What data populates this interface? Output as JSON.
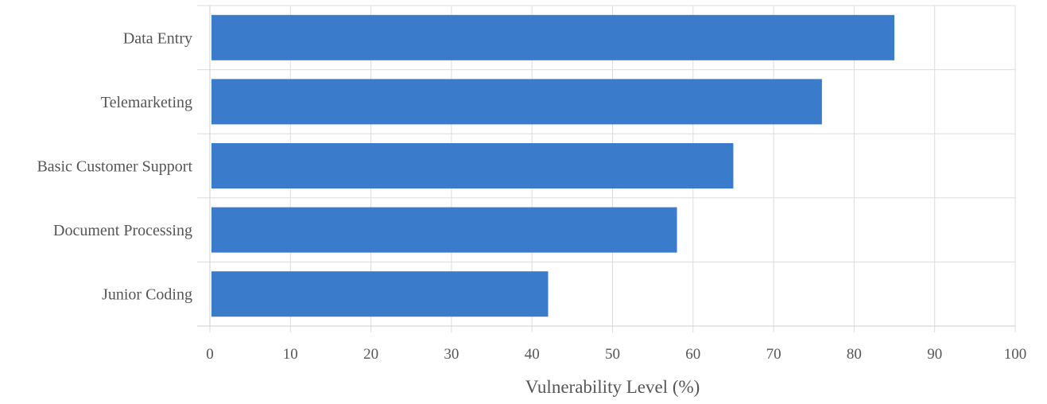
{
  "chart_data": {
    "type": "bar",
    "orientation": "horizontal",
    "categories": [
      "Data Entry",
      "Telemarketing",
      "Basic Customer Support",
      "Document Processing",
      "Junior Coding"
    ],
    "values": [
      85,
      76,
      65,
      58,
      42
    ],
    "xlabel": "Vulnerability Level (%)",
    "ylabel": "",
    "xlim": [
      0,
      100
    ],
    "xticks": [
      "0",
      "10",
      "20",
      "30",
      "40",
      "50",
      "60",
      "70",
      "80",
      "90",
      "100"
    ],
    "grid": true,
    "legend": "none",
    "bar_color": "#3a7bcb",
    "grid_color": "#dddddd",
    "text_color": "#555555"
  }
}
